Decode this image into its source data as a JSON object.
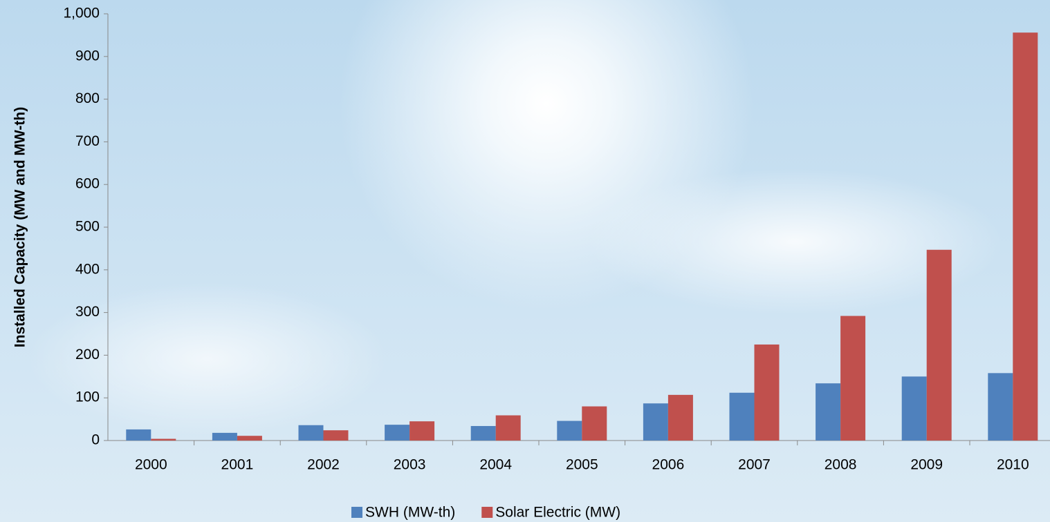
{
  "chart_data": {
    "type": "bar",
    "y_label": "Installed Capacity (MW and MW-th)",
    "categories": [
      "2000",
      "2001",
      "2002",
      "2003",
      "2004",
      "2005",
      "2006",
      "2007",
      "2008",
      "2009",
      "2010"
    ],
    "series": [
      {
        "name": "SWH (MW-th)",
        "color": "#4f81bd",
        "values": [
          26,
          18,
          36,
          37,
          34,
          46,
          87,
          112,
          134,
          150,
          158
        ]
      },
      {
        "name": "Solar Electric (MW)",
        "color": "#c0504d",
        "values": [
          4,
          11,
          24,
          45,
          59,
          80,
          107,
          225,
          292,
          447,
          956
        ]
      }
    ],
    "ylim": [
      0,
      1000
    ],
    "yticks": [
      0,
      100,
      200,
      300,
      400,
      500,
      600,
      700,
      800,
      900,
      {
        "value": 1000,
        "label": "1,000"
      }
    ],
    "legend": "bottom"
  }
}
